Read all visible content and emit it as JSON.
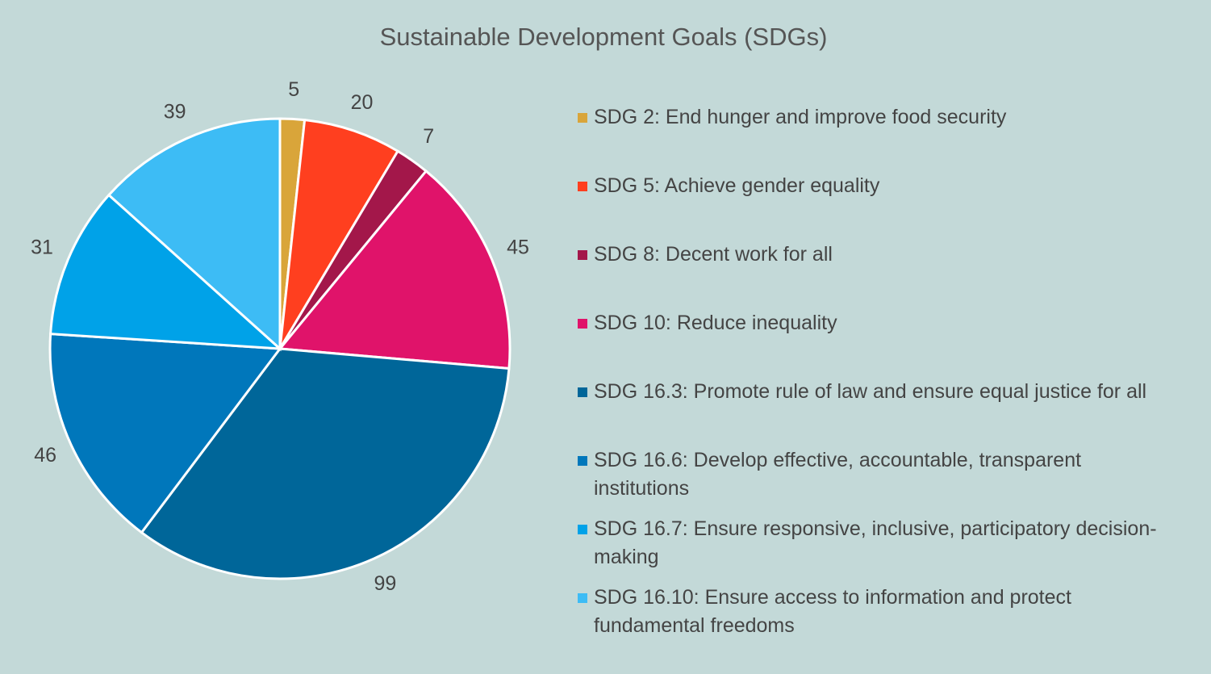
{
  "chart_data": {
    "type": "pie",
    "title": "Sustainable Development Goals (SDGs)",
    "categories": [
      "SDG 2: End hunger and improve food security",
      "SDG 5: Achieve gender equality",
      "SDG 8: Decent work for all",
      "SDG 10: Reduce inequality",
      "SDG 16.3: Promote rule of law and ensure equal justice for all",
      "SDG 16.6: Develop effective, accountable, transparent institutions",
      "SDG 16.7: Ensure responsive, inclusive, participatory decision-making",
      "SDG 16.10: Ensure access to information and protect fundamental freedoms"
    ],
    "values": [
      5,
      20,
      7,
      45,
      99,
      46,
      31,
      39
    ],
    "colors": [
      "#d9a53a",
      "#ff3f1f",
      "#a3174a",
      "#e0136a",
      "#006699",
      "#0077bb",
      "#00a2e8",
      "#3dbcf5"
    ],
    "legend": "right"
  }
}
